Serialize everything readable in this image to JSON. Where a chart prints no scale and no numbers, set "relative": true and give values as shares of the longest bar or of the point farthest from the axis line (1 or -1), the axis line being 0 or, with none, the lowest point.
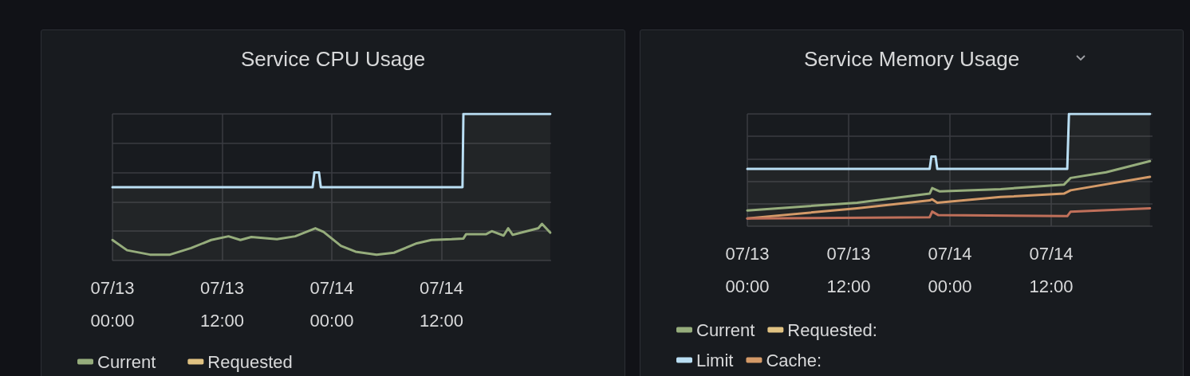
{
  "chart_data": [
    {
      "type": "line",
      "title": "Service CPU Usage",
      "relative": true,
      "grid": true,
      "legend": "bottom left",
      "marker": "none",
      "line_style": "solid",
      "xlim": [
        "--07-13T00:00",
        "--07-15T00:00"
      ],
      "xticks": [
        {
          "value": "--07-13T00:00",
          "label": "07/13\n00:00"
        },
        {
          "value": "--07-13T12:00",
          "label": "07/13\n12:00"
        },
        {
          "value": "--07-14T00:00",
          "label": "07/14\n00:00"
        },
        {
          "value": "--07-14T12:00",
          "label": "07/14\n12:00"
        }
      ],
      "series": [
        {
          "name": "Current",
          "color": "#96ad7c",
          "x": [
            "--07-13T00:00",
            "--07-13T01:36",
            "--07-13T04:06",
            "--07-13T06:18",
            "--07-13T08:36",
            "--07-13T10:48",
            "--07-13T12:42",
            "--07-13T14:00",
            "--07-13T15:12",
            "--07-13T18:00",
            "--07-13T20:00",
            "--07-13T22:12",
            "--07-13T23:06",
            "--07-14T01:00",
            "--07-14T02:36",
            "--07-14T04:54",
            "--07-14T06:48",
            "--07-14T09:18",
            "--07-14T10:54",
            "--07-14T13:06",
            "--07-14T14:24",
            "--07-14T14:42",
            "--07-14T16:54",
            "--07-14T17:30",
            "--07-14T18:48",
            "--07-14T19:18",
            "--07-14T19:48",
            "--07-14T22:36",
            "--07-14T23:00",
            "--07-14T23:54"
          ],
          "values": [
            0.14,
            0.07,
            0.04,
            0.04,
            0.085,
            0.14,
            0.165,
            0.14,
            0.16,
            0.145,
            0.165,
            0.22,
            0.195,
            0.1,
            0.06,
            0.04,
            0.053,
            0.117,
            0.14,
            0.145,
            0.15,
            0.18,
            0.18,
            0.2,
            0.17,
            0.22,
            0.175,
            0.22,
            0.25,
            0.19
          ]
        },
        {
          "name": "Requested",
          "color": "#e0c282"
        },
        {
          "type": "area",
          "color": "#badff4",
          "x": [
            "--07-13T00:00",
            "--07-13T21:54",
            "--07-13T22:06",
            "--07-13T22:36",
            "--07-13T22:48",
            "--07-14T14:18",
            "--07-14T14:24",
            "--07-14T23:54"
          ],
          "values": [
            0.5,
            0.5,
            0.6,
            0.6,
            0.5,
            0.5,
            1,
            1
          ]
        }
      ]
    },
    {
      "type": "line",
      "title": "Service Memory Usage",
      "relative": true,
      "grid": true,
      "legend": "bottom left",
      "marker": "none",
      "line_style": "solid",
      "xlim": [
        "--07-13T00:00",
        "--07-15T00:00"
      ],
      "xticks": [
        {
          "value": "--07-13T00:00",
          "label": "07/13\n00:00"
        },
        {
          "value": "--07-13T12:00",
          "label": "07/13\n12:00"
        },
        {
          "value": "--07-14T00:00",
          "label": "07/14\n00:00"
        },
        {
          "value": "--07-14T12:00",
          "label": "07/14\n12:00"
        }
      ],
      "series": [
        {
          "name": "Current",
          "color": "#96ad7c",
          "x": [
            "--07-13T00:00",
            "--07-13T13:00",
            "--07-13T21:36",
            "--07-13T21:54",
            "--07-13T22:48",
            "--07-14T06:00",
            "--07-14T13:30",
            "--07-14T14:18",
            "--07-14T18:30",
            "--07-14T23:42"
          ],
          "values": [
            0.14,
            0.21,
            0.29,
            0.34,
            0.31,
            0.33,
            0.37,
            0.43,
            0.48,
            0.58
          ]
        },
        {
          "name": "Requested:",
          "color": "#e0c282"
        },
        {
          "name": "Limit",
          "type": "area",
          "color": "#badff4",
          "x": [
            "--07-13T00:00",
            "--07-13T21:36",
            "--07-13T21:48",
            "--07-13T22:18",
            "--07-13T22:30",
            "--07-14T13:54",
            "--07-14T14:06",
            "--07-14T23:42"
          ],
          "values": [
            0.51,
            0.51,
            0.62,
            0.62,
            0.51,
            0.51,
            1,
            1
          ]
        },
        {
          "name": "Cache:",
          "color": "#d49a68",
          "x": [
            "--07-13T00:00",
            "--07-13T13:00",
            "--07-13T21:36",
            "--07-13T21:54",
            "--07-13T22:30",
            "--07-14T06:00",
            "--07-14T13:30",
            "--07-14T14:18",
            "--07-14T23:42"
          ],
          "values": [
            0.07,
            0.16,
            0.23,
            0.24,
            0.21,
            0.26,
            0.29,
            0.32,
            0.44
          ]
        },
        {
          "color": "#c0705a",
          "x": [
            "--07-13T00:00",
            "--07-13T21:36",
            "--07-13T21:54",
            "--07-13T22:36",
            "--07-14T13:54",
            "--07-14T14:18",
            "--07-14T23:42"
          ],
          "values": [
            0.07,
            0.08,
            0.13,
            0.1,
            0.09,
            0.13,
            0.16
          ]
        }
      ]
    }
  ]
}
